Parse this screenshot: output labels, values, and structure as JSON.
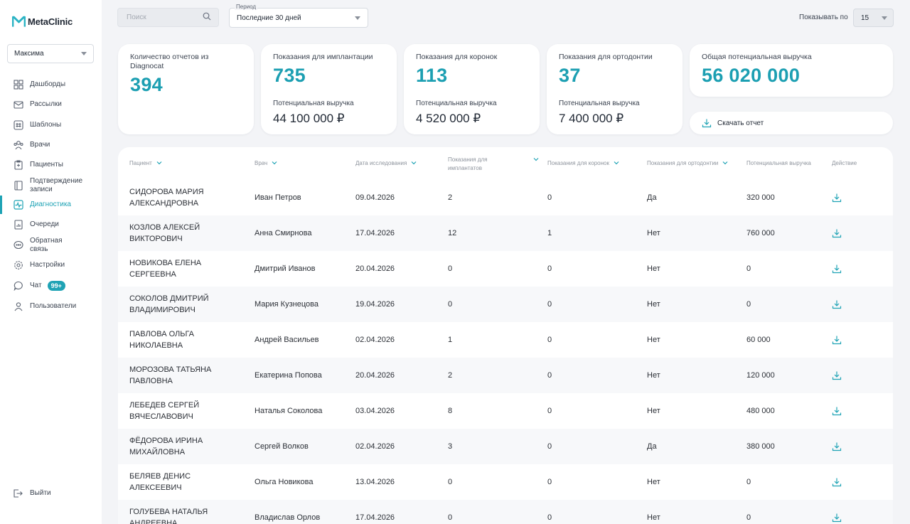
{
  "app": {
    "name": "MetaClinic"
  },
  "sidebar": {
    "clinic": "Максима",
    "items": [
      {
        "label": "Дашборды",
        "icon": "dashboard-icon"
      },
      {
        "label": "Рассылки",
        "icon": "mail-icon"
      },
      {
        "label": "Шаблоны",
        "icon": "template-icon"
      },
      {
        "label": "Врачи",
        "icon": "doctors-icon"
      },
      {
        "label": "Пациенты",
        "icon": "patients-icon"
      },
      {
        "label": "Подтверждение записи",
        "icon": "confirm-icon"
      },
      {
        "label": "Диагностика",
        "icon": "diagnostics-icon",
        "active": true
      },
      {
        "label": "Очереди",
        "icon": "queue-icon"
      },
      {
        "label": "Обратная связь",
        "icon": "feedback-icon"
      },
      {
        "label": "Настройки",
        "icon": "settings-icon"
      },
      {
        "label": "Чат",
        "icon": "chat-icon",
        "badge": "99+"
      },
      {
        "label": "Пользователи",
        "icon": "users-icon"
      }
    ],
    "logout": "Выйти"
  },
  "toolbar": {
    "search_placeholder": "Поиск",
    "period_label": "Период",
    "period_value": "Последние 30 дней",
    "per_page_label": "Показывать по",
    "per_page_value": "15"
  },
  "stats": {
    "reports": {
      "title": "Количество отчетов из Diagnocat",
      "value": "394"
    },
    "implants": {
      "title": "Показания для имплантации",
      "value": "735",
      "sub": "Потенциальная выручка",
      "money": "44 100 000 ₽"
    },
    "crowns": {
      "title": "Показания для коронок",
      "value": "113",
      "sub": "Потенциальная выручка",
      "money": "4 520 000 ₽"
    },
    "ortho": {
      "title": "Показания для ортодонтии",
      "value": "37",
      "sub": "Потенциальная выручка",
      "money": "7 400 000 ₽"
    },
    "total": {
      "title": "Общая потенциальная выручка",
      "value": "56 020 000"
    },
    "download_label": "Скачать отчет"
  },
  "table": {
    "headers": {
      "patient": "Пациент",
      "doctor": "Врач",
      "date": "Дата исследования",
      "implants": "Показания для имплантатов",
      "crowns": "Показания для коронок",
      "ortho": "Показания для ортодонтии",
      "revenue": "Потенциальная выручка",
      "action": "Действие"
    },
    "rows": [
      {
        "patient": "СИДОРОВА МАРИЯ АЛЕКСАНДРОВНА",
        "doctor": "Иван Петров",
        "date": "09.04.2026",
        "implants": "2",
        "crowns": "0",
        "ortho": "Да",
        "revenue": "320 000"
      },
      {
        "patient": "КОЗЛОВ АЛЕКСЕЙ ВИКТОРОВИЧ",
        "doctor": "Анна Смирнова",
        "date": "17.04.2026",
        "implants": "12",
        "crowns": "1",
        "ortho": "Нет",
        "revenue": "760 000"
      },
      {
        "patient": "НОВИКОВА ЕЛЕНА СЕРГЕЕВНА",
        "doctor": "Дмитрий Иванов",
        "date": "20.04.2026",
        "implants": "0",
        "crowns": "0",
        "ortho": "Нет",
        "revenue": "0"
      },
      {
        "patient": "СОКОЛОВ ДМИТРИЙ ВЛАДИМИРОВИЧ",
        "doctor": "Мария Кузнецова",
        "date": "19.04.2026",
        "implants": "0",
        "crowns": "0",
        "ortho": "Нет",
        "revenue": "0"
      },
      {
        "patient": "ПАВЛОВА ОЛЬГА НИКОЛАЕВНА",
        "doctor": "Андрей Васильев",
        "date": "02.04.2026",
        "implants": "1",
        "crowns": "0",
        "ortho": "Нет",
        "revenue": "60 000"
      },
      {
        "patient": "МОРОЗОВА ТАТЬЯНА ПАВЛОВНА",
        "doctor": "Екатерина Попова",
        "date": "20.04.2026",
        "implants": "2",
        "crowns": "0",
        "ortho": "Нет",
        "revenue": "120 000"
      },
      {
        "patient": "ЛЕБЕДЕВ СЕРГЕЙ ВЯЧЕСЛАВОВИЧ",
        "doctor": "Наталья Соколова",
        "date": "03.04.2026",
        "implants": "8",
        "crowns": "0",
        "ortho": "Нет",
        "revenue": "480 000"
      },
      {
        "patient": "ФЁДОРОВА ИРИНА МИХАЙЛОВНА",
        "doctor": "Сергей Волков",
        "date": "02.04.2026",
        "implants": "3",
        "crowns": "0",
        "ortho": "Да",
        "revenue": "380 000"
      },
      {
        "patient": "БЕЛЯЕВ ДЕНИС АЛЕКСЕЕВИЧ",
        "doctor": "Ольга Новикова",
        "date": "13.04.2026",
        "implants": "0",
        "crowns": "0",
        "ortho": "Нет",
        "revenue": "0"
      },
      {
        "patient": "ГОЛУБЕВА НАТАЛЬЯ АНДРЕЕВНА",
        "doctor": "Владислав Орлов",
        "date": "17.04.2026",
        "implants": "0",
        "crowns": "0",
        "ortho": "Нет",
        "revenue": "0"
      }
    ]
  },
  "colors": {
    "accent": "#1fa3b5",
    "background": "#f3f4f7"
  }
}
